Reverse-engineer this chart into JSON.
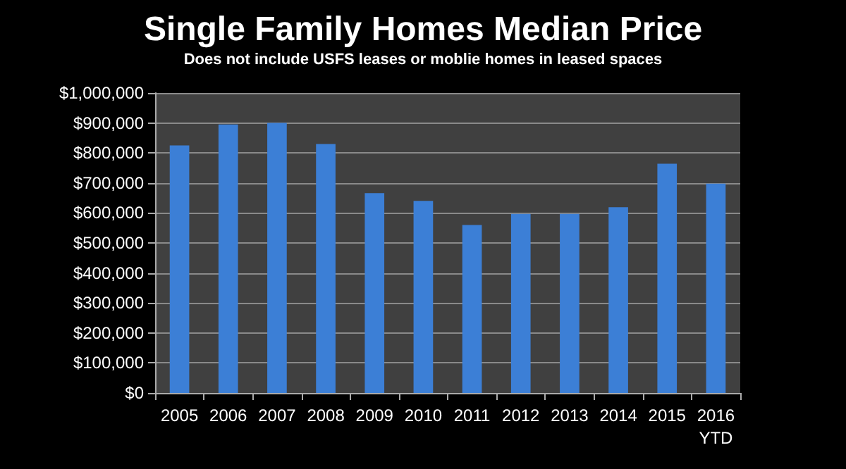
{
  "chart_data": {
    "type": "bar",
    "title": "Single Family Homes Median Price",
    "subtitle": "Does not include USFS leases or moblie homes in leased spaces",
    "categories": [
      "2005",
      "2006",
      "2007",
      "2008",
      "2009",
      "2010",
      "2011",
      "2012",
      "2013",
      "2014",
      "2015",
      "2016\nYTD"
    ],
    "values": [
      825000,
      895000,
      900000,
      830000,
      666000,
      640000,
      560000,
      597000,
      597000,
      619000,
      764000,
      698000
    ],
    "color": "#3c7fd6",
    "ylim": [
      0,
      1000000
    ],
    "yticks": [
      {
        "value": 0,
        "label": "$0"
      },
      {
        "value": 100000,
        "label": "$100,000"
      },
      {
        "value": 200000,
        "label": "$200,000"
      },
      {
        "value": 300000,
        "label": "$300,000"
      },
      {
        "value": 400000,
        "label": "$400,000"
      },
      {
        "value": 500000,
        "label": "$500,000"
      },
      {
        "value": 600000,
        "label": "$600,000"
      },
      {
        "value": 700000,
        "label": "$700,000"
      },
      {
        "value": 800000,
        "label": "$800,000"
      },
      {
        "value": 900000,
        "label": "$900,000"
      },
      {
        "value": 1000000,
        "label": "$1,000,000"
      }
    ],
    "grid": true
  }
}
